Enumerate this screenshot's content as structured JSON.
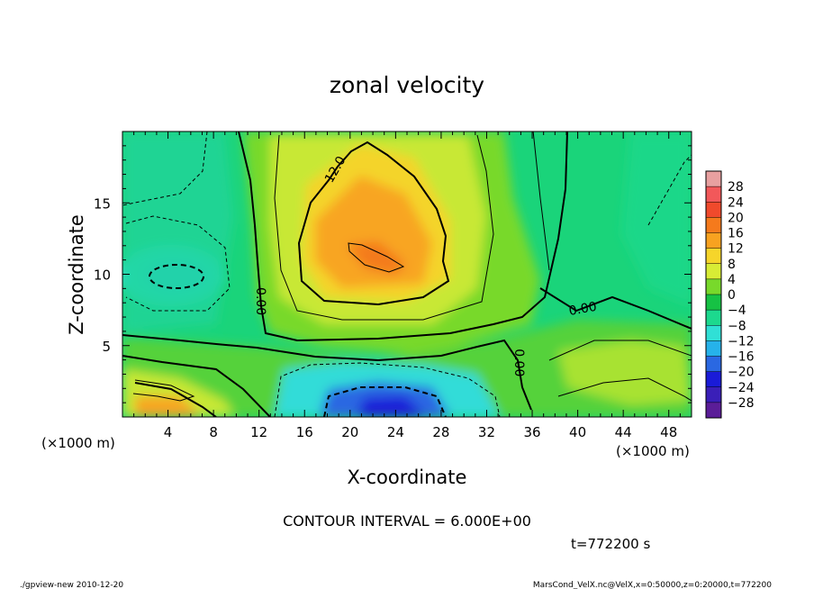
{
  "chart_data": {
    "type": "heatmap",
    "title": "zonal velocity",
    "xlabel": "X-coordinate",
    "ylabel": "Z-coordinate",
    "x_unit_label": "(×1000 m)",
    "y_unit_label": "(×1000 m)",
    "xlim": [
      0,
      50
    ],
    "ylim": [
      0,
      20
    ],
    "x_ticks": [
      "4",
      "8",
      "12",
      "16",
      "20",
      "24",
      "28",
      "32",
      "36",
      "40",
      "44",
      "48"
    ],
    "x_tick_values": [
      4,
      8,
      12,
      16,
      20,
      24,
      28,
      32,
      36,
      40,
      44,
      48
    ],
    "y_ticks": [
      "5",
      "10",
      "15"
    ],
    "y_tick_values": [
      5,
      10,
      15
    ],
    "colorbar_labels": [
      "28",
      "24",
      "20",
      "16",
      "12",
      "8",
      "4",
      "0",
      "−4",
      "−8",
      "−12",
      "−16",
      "−20",
      "−24",
      "−28"
    ],
    "colorbar_values": [
      28,
      24,
      20,
      16,
      12,
      8,
      4,
      0,
      -4,
      -8,
      -12,
      -16,
      -20,
      -24,
      -28
    ],
    "colorbar_colors": [
      "#e8a0a0",
      "#f2585a",
      "#f04a2c",
      "#f57a1c",
      "#f8a220",
      "#f6d52a",
      "#d8ec35",
      "#78d92b",
      "#16c244",
      "#1cd98e",
      "#30e0d6",
      "#26b2ea",
      "#2a68e2",
      "#1a1bd8",
      "#3a1fb8",
      "#5b1d98"
    ],
    "contour_labels": [
      {
        "text": "12.0",
        "x": 19.0,
        "y": 17.2
      },
      {
        "text": "0.00",
        "x": 11.8,
        "y": 8.1
      },
      {
        "text": "0.00",
        "x": 40.5,
        "y": 7.3
      },
      {
        "text": "0.00",
        "x": 34.5,
        "y": 3.8
      }
    ],
    "annotations": {
      "contour_interval": "CONTOUR INTERVAL = 6.000E+00",
      "time": "t=772200 s",
      "footer_left": "./gpview-new  2010-12-20",
      "footer_right": "MarsCond_VelX.nc@VelX,x=0:50000,z=0:20000,t=772200"
    }
  }
}
